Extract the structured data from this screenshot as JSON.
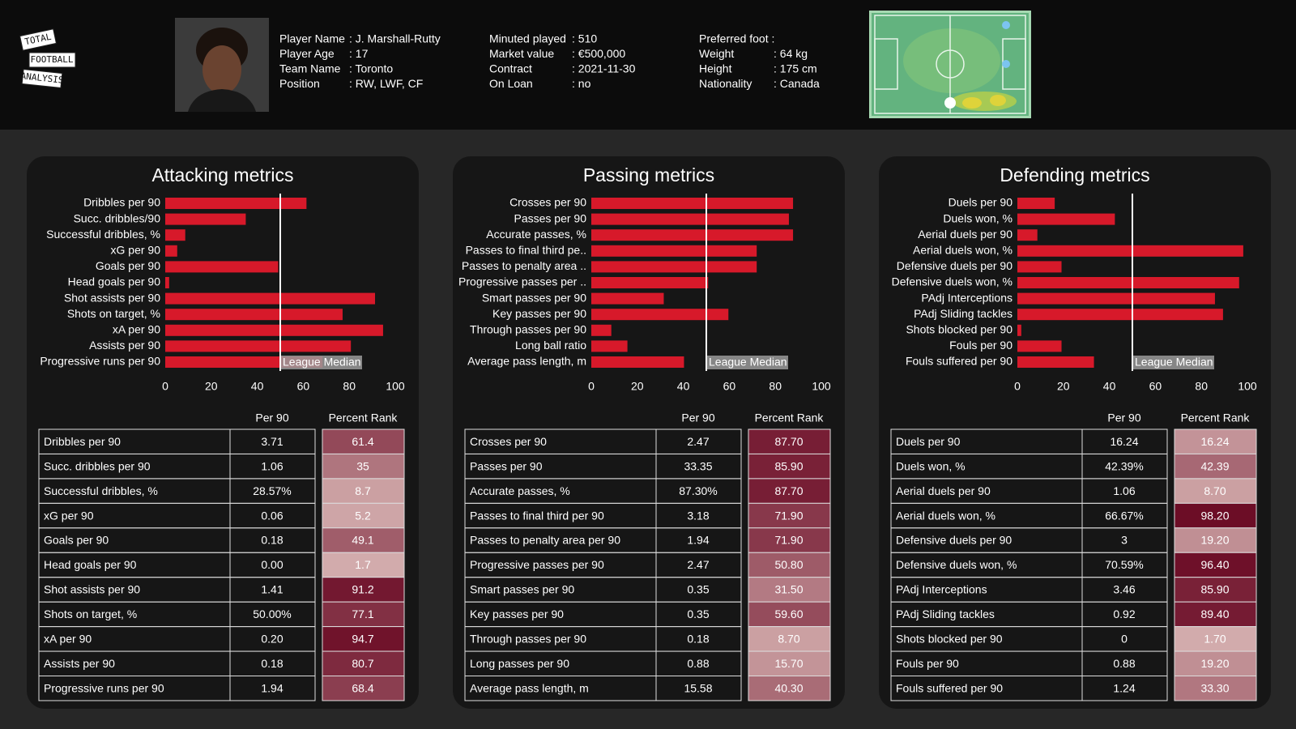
{
  "header": {
    "logo": [
      "TOTAL",
      "FOOTBALL",
      "ANALYSIS"
    ],
    "info": [
      [
        [
          "Player Name",
          ": J. Marshall-Rutty"
        ],
        [
          "Player Age",
          ": 17"
        ],
        [
          "Team Name",
          ": Toronto"
        ],
        [
          "Position",
          ": RW, LWF, CF"
        ]
      ],
      [
        [
          "Minuted played",
          ": 510"
        ],
        [
          "Market value",
          ": €500,000"
        ],
        [
          "Contract",
          ": 2021-11-30"
        ],
        [
          "On Loan",
          ": no"
        ]
      ],
      [
        [
          "Preferred foot :"
        ],
        [
          "Weight",
          ": 64 kg"
        ],
        [
          "Height",
          ": 175 cm"
        ],
        [
          "Nationality",
          ": Canada"
        ]
      ]
    ]
  },
  "chart_data": [
    {
      "type": "bar",
      "title": "Attacking metrics",
      "color": "#d7192a",
      "categories": [
        "Dribbles per 90",
        "Succ. dribbles/90",
        "Successful dribbles, %",
        "xG per 90",
        "Goals per 90",
        "Head goals per 90",
        "Shot assists per 90",
        "Shots on target, %",
        "xA per 90",
        "Assists per 90",
        "Progressive runs per 90"
      ],
      "values": [
        61.4,
        35,
        8.7,
        5.2,
        49.1,
        1.7,
        91.2,
        77.1,
        94.7,
        80.7,
        68.4
      ],
      "xlim": [
        0,
        100
      ],
      "xticks": [
        0,
        20,
        40,
        60,
        80,
        100
      ],
      "reference_line": {
        "value": 50,
        "label": "League Median"
      },
      "table": {
        "columns": [
          "Per 90",
          "Percent Rank"
        ],
        "rows": [
          [
            "Dribbles per 90",
            "3.71"
          ],
          [
            "Succ. dribbles per 90",
            "1.06"
          ],
          [
            "Successful dribbles, %",
            "28.57%"
          ],
          [
            "xG per 90",
            "0.06"
          ],
          [
            "Goals per 90",
            "0.18"
          ],
          [
            "Head goals per 90",
            "0.00"
          ],
          [
            "Shot assists per 90",
            "1.41"
          ],
          [
            "Shots on target, %",
            "50.00%"
          ],
          [
            "xA per 90",
            "0.20"
          ],
          [
            "Assists per 90",
            "0.18"
          ],
          [
            "Progressive runs per 90",
            "1.94"
          ]
        ]
      }
    },
    {
      "type": "bar",
      "title": "Passing metrics",
      "color": "#d7192a",
      "categories": [
        "Crosses per 90",
        "Passes per 90",
        "Accurate passes, %",
        "Passes to final third pe..",
        "Passes to penalty area ..",
        "Progressive passes per ..",
        "Smart passes per 90",
        "Key passes per 90",
        "Through passes per 90",
        "Long ball ratio",
        "Average pass length, m"
      ],
      "values": [
        87.7,
        85.9,
        87.7,
        71.9,
        71.9,
        50.8,
        31.5,
        59.6,
        8.7,
        15.7,
        40.3
      ],
      "value_labels": [
        "87.70",
        "85.90",
        "87.70",
        "71.90",
        "71.90",
        "50.80",
        "31.50",
        "59.60",
        "8.70",
        "15.70",
        "40.30"
      ],
      "xlim": [
        0,
        100
      ],
      "xticks": [
        0,
        20,
        40,
        60,
        80,
        100
      ],
      "reference_line": {
        "value": 50,
        "label": "League Median"
      },
      "table": {
        "columns": [
          "Per 90",
          "Percent Rank"
        ],
        "rows": [
          [
            "Crosses per 90",
            "2.47"
          ],
          [
            "Passes per 90",
            "33.35"
          ],
          [
            "Accurate passes, %",
            "87.30%"
          ],
          [
            "Passes to final third per 90",
            "3.18"
          ],
          [
            "Passes to penalty area per 90",
            "1.94"
          ],
          [
            "Progressive passes per 90",
            "2.47"
          ],
          [
            "Smart passes per 90",
            "0.35"
          ],
          [
            "Key passes per 90",
            "0.35"
          ],
          [
            "Through passes per 90",
            "0.18"
          ],
          [
            "Long passes per 90",
            "0.88"
          ],
          [
            "Average pass length, m",
            "15.58"
          ]
        ]
      }
    },
    {
      "type": "bar",
      "title": "Defending metrics",
      "color": "#d7192a",
      "categories": [
        "Duels per 90",
        "Duels won, %",
        "Aerial duels per 90",
        "Aerial duels won, %",
        "Defensive duels per 90",
        "Defensive duels won, %",
        "PAdj Interceptions",
        "PAdj Sliding tackles",
        "Shots blocked per 90",
        "Fouls per 90",
        "Fouls suffered per 90"
      ],
      "values": [
        16.24,
        42.39,
        8.7,
        98.2,
        19.2,
        96.4,
        85.9,
        89.4,
        1.7,
        19.2,
        33.3
      ],
      "value_labels": [
        "16.24",
        "42.39",
        "8.70",
        "98.20",
        "19.20",
        "96.40",
        "85.90",
        "89.40",
        "1.70",
        "19.20",
        "33.30"
      ],
      "xlim": [
        0,
        100
      ],
      "xticks": [
        0,
        20,
        40,
        60,
        80,
        100
      ],
      "reference_line": {
        "value": 50,
        "label": "League Median"
      },
      "table": {
        "columns": [
          "Per 90",
          "Percent Rank"
        ],
        "rows": [
          [
            "Duels per 90",
            "16.24"
          ],
          [
            "Duels won, %",
            "42.39%"
          ],
          [
            "Aerial duels per 90",
            "1.06"
          ],
          [
            "Aerial duels won, %",
            "66.67%"
          ],
          [
            "Defensive duels per 90",
            "3"
          ],
          [
            "Defensive duels won, %",
            "70.59%"
          ],
          [
            "PAdj Interceptions",
            "3.46"
          ],
          [
            "PAdj Sliding tackles",
            "0.92"
          ],
          [
            "Shots blocked per 90",
            "0"
          ],
          [
            "Fouls per 90",
            "0.88"
          ],
          [
            "Fouls suffered per 90",
            "1.24"
          ]
        ]
      }
    }
  ]
}
